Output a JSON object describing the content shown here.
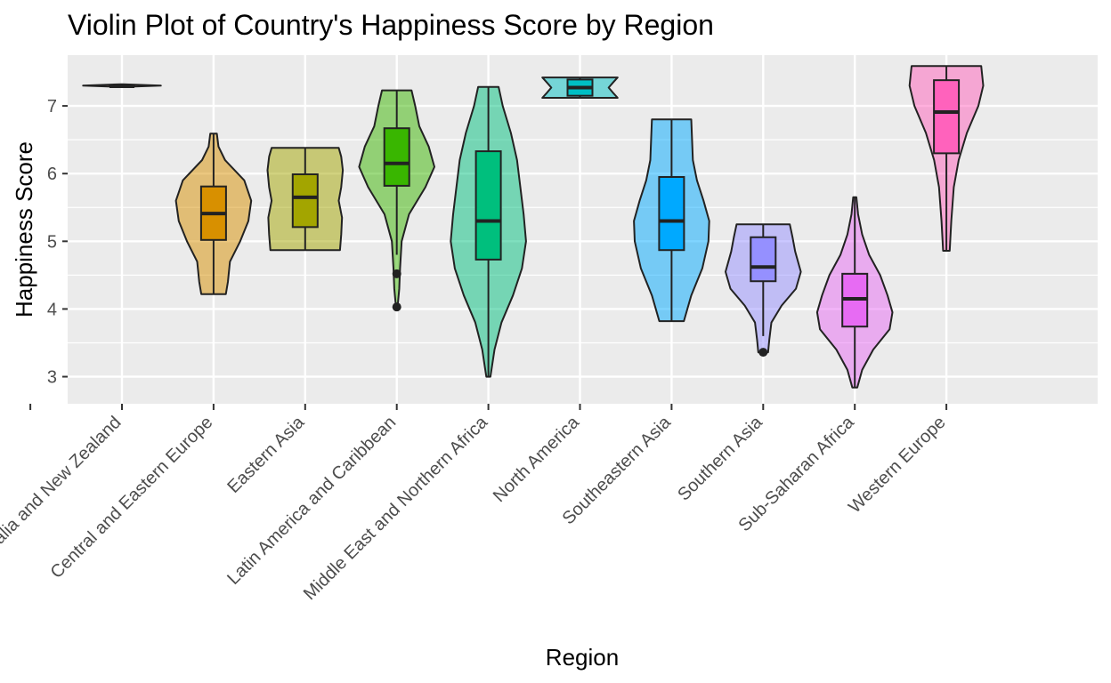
{
  "chart_data": {
    "type": "violin",
    "title": "Violin Plot of Country's Happiness Score by Region",
    "xlabel": "Region",
    "ylabel": "Happiness Score",
    "ylim": [
      2.6,
      7.75
    ],
    "yticks": [
      3,
      4,
      5,
      6,
      7
    ],
    "grid": true,
    "legend": "none",
    "categories": [
      "Australia and New Zealand",
      "Central and Eastern Europe",
      "Eastern Asia",
      "Latin America and Caribbean",
      "Middle East and Northern Africa",
      "North America",
      "Southeastern Asia",
      "Southern Asia",
      "Sub-Saharan Africa",
      "Western Europe"
    ],
    "series": [
      {
        "category": "Australia and New Zealand",
        "color": "#F8766D",
        "box": {
          "min": 7.29,
          "q1": 7.29,
          "median": 7.29,
          "q3": 7.31,
          "max": 7.31
        },
        "outliers": [],
        "density": [
          [
            7.28,
            0.02
          ],
          [
            7.3,
            0.95
          ],
          [
            7.32,
            0.02
          ]
        ]
      },
      {
        "category": "Central and Eastern Europe",
        "color": "#D89000",
        "box": {
          "min": 4.22,
          "q1": 5.02,
          "median": 5.41,
          "q3": 5.81,
          "max": 6.59
        },
        "outliers": [],
        "density": [
          [
            4.22,
            0.3
          ],
          [
            4.4,
            0.35
          ],
          [
            4.7,
            0.4
          ],
          [
            5.0,
            0.65
          ],
          [
            5.3,
            0.85
          ],
          [
            5.6,
            0.92
          ],
          [
            5.9,
            0.75
          ],
          [
            6.2,
            0.28
          ],
          [
            6.4,
            0.12
          ],
          [
            6.59,
            0.08
          ]
        ]
      },
      {
        "category": "Eastern Asia",
        "color": "#A3A500",
        "box": {
          "min": 4.87,
          "q1": 5.21,
          "median": 5.65,
          "q3": 5.99,
          "max": 6.38
        },
        "outliers": [],
        "density": [
          [
            4.87,
            0.85
          ],
          [
            5.1,
            0.88
          ],
          [
            5.35,
            0.9
          ],
          [
            5.6,
            0.82
          ],
          [
            5.8,
            0.88
          ],
          [
            6.05,
            0.92
          ],
          [
            6.25,
            0.88
          ],
          [
            6.38,
            0.82
          ]
        ]
      },
      {
        "category": "Latin America and Caribbean",
        "color": "#39B600",
        "box": {
          "min": 4.8,
          "q1": 5.82,
          "median": 6.15,
          "q3": 6.67,
          "max": 7.23
        },
        "outliers": [
          4.52,
          4.03
        ],
        "density": [
          [
            4.03,
            0.02
          ],
          [
            4.3,
            0.06
          ],
          [
            4.6,
            0.08
          ],
          [
            5.0,
            0.12
          ],
          [
            5.4,
            0.3
          ],
          [
            5.8,
            0.7
          ],
          [
            6.1,
            0.92
          ],
          [
            6.4,
            0.78
          ],
          [
            6.7,
            0.55
          ],
          [
            7.0,
            0.45
          ],
          [
            7.23,
            0.36
          ]
        ]
      },
      {
        "category": "Middle East and Northern Africa",
        "color": "#00BF7D",
        "box": {
          "min": 3.0,
          "q1": 4.73,
          "median": 5.3,
          "q3": 6.33,
          "max": 7.28
        },
        "outliers": [],
        "density": [
          [
            3.0,
            0.05
          ],
          [
            3.4,
            0.15
          ],
          [
            3.8,
            0.32
          ],
          [
            4.2,
            0.6
          ],
          [
            4.6,
            0.82
          ],
          [
            5.0,
            0.92
          ],
          [
            5.4,
            0.86
          ],
          [
            5.8,
            0.78
          ],
          [
            6.2,
            0.7
          ],
          [
            6.6,
            0.55
          ],
          [
            7.0,
            0.35
          ],
          [
            7.28,
            0.25
          ]
        ]
      },
      {
        "category": "North America",
        "color": "#00BFC4",
        "box": {
          "min": 7.12,
          "q1": 7.15,
          "median": 7.27,
          "q3": 7.39,
          "max": 7.42
        },
        "outliers": [],
        "density": [
          [
            7.12,
            0.92
          ],
          [
            7.2,
            0.8
          ],
          [
            7.27,
            0.7
          ],
          [
            7.34,
            0.8
          ],
          [
            7.42,
            0.92
          ]
        ]
      },
      {
        "category": "Southeastern Asia",
        "color": "#00A9FF",
        "box": {
          "min": 3.82,
          "q1": 4.87,
          "median": 5.3,
          "q3": 5.95,
          "max": 6.8
        },
        "outliers": [],
        "density": [
          [
            3.82,
            0.3
          ],
          [
            4.2,
            0.48
          ],
          [
            4.6,
            0.75
          ],
          [
            5.0,
            0.9
          ],
          [
            5.3,
            0.92
          ],
          [
            5.6,
            0.78
          ],
          [
            5.9,
            0.62
          ],
          [
            6.2,
            0.52
          ],
          [
            6.5,
            0.5
          ],
          [
            6.8,
            0.48
          ]
        ]
      },
      {
        "category": "Southern Asia",
        "color": "#9590FF",
        "box": {
          "min": 3.6,
          "q1": 4.41,
          "median": 4.62,
          "q3": 5.06,
          "max": 5.25
        },
        "outliers": [
          3.36
        ],
        "density": [
          [
            3.36,
            0.12
          ],
          [
            3.55,
            0.15
          ],
          [
            3.8,
            0.2
          ],
          [
            4.05,
            0.45
          ],
          [
            4.3,
            0.8
          ],
          [
            4.55,
            0.92
          ],
          [
            4.85,
            0.78
          ],
          [
            5.05,
            0.72
          ],
          [
            5.25,
            0.65
          ]
        ]
      },
      {
        "category": "Sub-Saharan Africa",
        "color": "#E76BF3",
        "box": {
          "min": 2.84,
          "q1": 3.74,
          "median": 4.15,
          "q3": 4.52,
          "max": 5.65
        },
        "outliers": [],
        "density": [
          [
            2.84,
            0.06
          ],
          [
            3.1,
            0.18
          ],
          [
            3.4,
            0.45
          ],
          [
            3.7,
            0.85
          ],
          [
            3.95,
            0.92
          ],
          [
            4.2,
            0.8
          ],
          [
            4.5,
            0.62
          ],
          [
            4.8,
            0.35
          ],
          [
            5.1,
            0.18
          ],
          [
            5.4,
            0.08
          ],
          [
            5.65,
            0.04
          ]
        ]
      },
      {
        "category": "Western Europe",
        "color": "#FF62BC",
        "box": {
          "min": 4.86,
          "q1": 6.3,
          "median": 6.91,
          "q3": 7.38,
          "max": 7.59
        },
        "outliers": [],
        "density": [
          [
            4.86,
            0.08
          ],
          [
            5.3,
            0.12
          ],
          [
            5.8,
            0.18
          ],
          [
            6.2,
            0.3
          ],
          [
            6.6,
            0.5
          ],
          [
            7.0,
            0.78
          ],
          [
            7.3,
            0.9
          ],
          [
            7.59,
            0.85
          ]
        ]
      }
    ]
  }
}
